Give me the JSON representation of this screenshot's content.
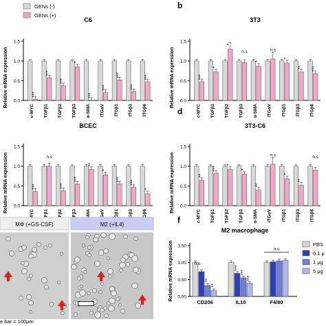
{
  "legend_main": [
    "GENs (-)",
    "GENs (+)"
  ],
  "colors": {
    "neg": "#d9d9d9",
    "pos": "#f4a6c7",
    "m2_pbs": "#d9d9d9",
    "m2_01": "#2e3fb5",
    "m2_1": "#6f7fe0",
    "m2_5": "#aeb8f0"
  },
  "ylabel": "Relative mRNA expression",
  "panel_letters": [
    "b",
    "d",
    "f"
  ],
  "micro_labels": [
    "MΦ (+GS-CSF)",
    "M2 (+IL4)"
  ],
  "scale_text": "e bar = 100μm",
  "m2_legend": [
    "PBS",
    "0.1 μ",
    "1 μg",
    "5 μg"
  ],
  "chart_data": [
    {
      "type": "bar",
      "title": "C6",
      "categories": [
        "c-MYC",
        "TGFβ1",
        "TGFβ2",
        "TGFβ3",
        "α-SMA",
        "ITGαV",
        "ITGβ1",
        "ITGβ3",
        "ITGβ6"
      ],
      "series": [
        {
          "name": "GENs (-)",
          "values": [
            1,
            1,
            1,
            1,
            1,
            1,
            1,
            1,
            1
          ]
        },
        {
          "name": "GENs (+)",
          "values": [
            0.03,
            0.57,
            0.37,
            0.85,
            0.0,
            0.2,
            0.52,
            0.22,
            0.47
          ]
        }
      ],
      "significance": [
        "***",
        "***",
        "***",
        "*",
        "***",
        "***",
        "***",
        "***",
        "***"
      ],
      "ylim": [
        0,
        1.5
      ],
      "yticks": [
        0,
        0.5,
        1.0,
        1.5
      ]
    },
    {
      "type": "bar",
      "title": "3T3",
      "categories": [
        "c-MYC",
        "TGFβ1",
        "TGFβ2",
        "TGFβ3",
        "α-SMA",
        "ITGαV",
        "ITGβ1",
        "ITGβ3",
        "ITGβ6"
      ],
      "series": [
        {
          "name": "GENs (-)",
          "values": [
            1,
            1,
            1,
            1,
            1,
            1,
            1,
            1,
            1
          ]
        },
        {
          "name": "GENs (+)",
          "values": [
            0.47,
            0.72,
            1.3,
            0.96,
            0.87,
            1.05,
            0.95,
            0.72,
            0.68
          ]
        }
      ],
      "significance": [
        "***",
        "*",
        "*",
        "n.s",
        "*",
        "n.s",
        "*",
        "**",
        "***"
      ],
      "ylim": [
        0,
        1.5
      ],
      "yticks": [
        0,
        0.5,
        1.0,
        1.5
      ]
    },
    {
      "type": "bar",
      "title": "BCEC",
      "categories": [
        "c-MYC",
        "TGFβ1",
        "TGFβ2",
        "TGFβ3",
        "α-SMA",
        "ITGαV",
        "ITGβ1",
        "ITGβ3",
        "ITGβ6"
      ],
      "series": [
        {
          "name": "GENs (-)",
          "values": [
            1,
            1,
            1,
            1,
            1,
            1,
            1,
            1,
            1
          ]
        },
        {
          "name": "GENs (+)",
          "values": [
            0.36,
            1.0,
            0.38,
            0.55,
            0.92,
            0.78,
            0.55,
            0.47,
            0.3
          ]
        }
      ],
      "significance": [
        "***",
        "n.s",
        "***",
        "***",
        "**",
        "*",
        "***",
        "***",
        "*"
      ],
      "ylim": [
        0,
        1.5
      ],
      "yticks": [
        0,
        0.5,
        1.0,
        1.5
      ]
    },
    {
      "type": "bar",
      "title": "3T3-C6",
      "categories": [
        "c-MYC",
        "TGFβ1",
        "TGFβ2",
        "TGFβ3",
        "α-SMA",
        "ITGαV",
        "ITGβ1",
        "ITGβ3",
        "ITGβ6"
      ],
      "series": [
        {
          "name": "GENs (-)",
          "values": [
            1,
            1,
            1,
            1,
            1,
            1,
            1,
            1,
            1
          ]
        },
        {
          "name": "GENs (+)",
          "values": [
            0.64,
            0.82,
            0.92,
            0.8,
            0.4,
            1.05,
            0.68,
            0.52,
            0.9
          ]
        }
      ],
      "significance": [
        "**",
        "***",
        "*",
        "*",
        "**",
        "n.s",
        "*",
        "**",
        "n.s"
      ],
      "ylim": [
        0,
        1.5
      ],
      "yticks": [
        0,
        0.5,
        1.0,
        1.5
      ]
    },
    {
      "type": "bar",
      "title": "M2 macrophage",
      "categories": [
        "CD206",
        "IL10",
        "F4/80"
      ],
      "series": [
        {
          "name": "PBS",
          "values": [
            1.0,
            1.0,
            1.0
          ]
        },
        {
          "name": "0.1 μ",
          "values": [
            0.73,
            0.68,
            1.02
          ]
        },
        {
          "name": "1 μg",
          "values": [
            0.32,
            0.55,
            1.05
          ]
        },
        {
          "name": "5 μg",
          "values": [
            0.17,
            0.38,
            1.06
          ]
        }
      ],
      "significance": [
        [
          "n.s",
          "**",
          "**"
        ],
        [
          "***",
          "***",
          "***"
        ],
        [
          "n.s"
        ]
      ],
      "ylim": [
        0,
        1.5
      ],
      "yticks": [
        "0.00",
        "0.50",
        "1.00",
        "1.50"
      ]
    }
  ]
}
